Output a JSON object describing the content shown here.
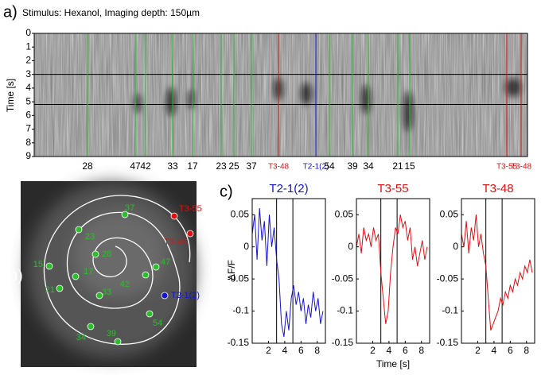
{
  "panel_a": {
    "label": "a)",
    "title": "Stimulus: Hexanol, Imaging depth: 150µm",
    "ylabel": "Time [s]",
    "ylim": [
      0,
      9
    ],
    "yticks": [
      0,
      1,
      2,
      3,
      4,
      5,
      6,
      7,
      8,
      9
    ],
    "stimulus": [
      3,
      5.2
    ],
    "cells": [
      {
        "label": "28",
        "color": "#2bbf2b"
      },
      {
        "label": "47",
        "color": "#2bbf2b"
      },
      {
        "label": "42",
        "color": "#2bbf2b"
      },
      {
        "label": "33",
        "color": "#2bbf2b"
      },
      {
        "label": "17",
        "color": "#2bbf2b"
      },
      {
        "label": "23",
        "color": "#2bbf2b"
      },
      {
        "label": "25",
        "color": "#2bbf2b"
      },
      {
        "label": "37",
        "color": "#2bbf2b"
      },
      {
        "label": "T3-48",
        "color": "#e01010"
      },
      {
        "label": "T2-1(2)",
        "color": "#1515d0"
      },
      {
        "label": "54",
        "color": "#2bbf2b"
      },
      {
        "label": "39",
        "color": "#2bbf2b"
      },
      {
        "label": "34",
        "color": "#2bbf2b"
      },
      {
        "label": "21",
        "color": "#2bbf2b"
      },
      {
        "label": "15",
        "color": "#2bbf2b"
      },
      {
        "label": "T3-55",
        "color": "#e01010"
      },
      {
        "label": "T3-48",
        "color": "#e01010"
      }
    ]
  },
  "panel_b": {
    "label": "b)",
    "cells": [
      {
        "label": "37",
        "color": "#2bbf2b"
      },
      {
        "label": "T3-55",
        "color": "#e01010"
      },
      {
        "label": "T3-48",
        "color": "#e01010"
      },
      {
        "label": "23",
        "color": "#2bbf2b"
      },
      {
        "label": "28",
        "color": "#2bbf2b"
      },
      {
        "label": "15",
        "color": "#2bbf2b"
      },
      {
        "label": "17",
        "color": "#2bbf2b"
      },
      {
        "label": "21",
        "color": "#2bbf2b"
      },
      {
        "label": "47",
        "color": "#2bbf2b"
      },
      {
        "label": "42",
        "color": "#2bbf2b"
      },
      {
        "label": "33",
        "color": "#2bbf2b"
      },
      {
        "label": "T2-1(2)",
        "color": "#1515d0"
      },
      {
        "label": "54",
        "color": "#2bbf2b"
      },
      {
        "label": "34",
        "color": "#2bbf2b"
      },
      {
        "label": "39",
        "color": "#2bbf2b"
      }
    ]
  },
  "panel_c": {
    "label": "c)",
    "xlabel": "Time [s]",
    "ylabel": "ΔF/F",
    "chart_data": [
      {
        "type": "line",
        "title": "T2-1(2)",
        "color": "#1515d0",
        "xlim": [
          0,
          9
        ],
        "xticks": [
          2,
          4,
          6,
          8
        ],
        "ylim": [
          -0.15,
          0.075
        ],
        "yticks": [
          0.05,
          0,
          -0.05,
          -0.1,
          -0.15
        ],
        "vlines": [
          3,
          5
        ],
        "x": [
          0,
          0.3,
          0.6,
          0.9,
          1.2,
          1.5,
          1.8,
          2.1,
          2.4,
          2.7,
          3.0,
          3.3,
          3.6,
          3.9,
          4.2,
          4.5,
          4.8,
          5.1,
          5.4,
          5.7,
          6.0,
          6.3,
          6.6,
          6.9,
          7.2,
          7.5,
          7.8,
          8.1,
          8.4,
          8.7
        ],
        "values": [
          0.02,
          0.05,
          -0.02,
          0.06,
          0.01,
          0.04,
          -0.03,
          0.05,
          0.0,
          0.03,
          -0.02,
          -0.05,
          -0.12,
          -0.14,
          -0.1,
          -0.13,
          -0.08,
          -0.06,
          -0.09,
          -0.07,
          -0.1,
          -0.08,
          -0.12,
          -0.09,
          -0.11,
          -0.07,
          -0.1,
          -0.08,
          -0.12,
          -0.1
        ]
      },
      {
        "type": "line",
        "title": "T3-55",
        "color": "#e01010",
        "xlim": [
          0,
          9
        ],
        "xticks": [
          2,
          4,
          6,
          8
        ],
        "ylim": [
          -0.15,
          0.075
        ],
        "yticks": [
          0.05,
          0,
          -0.05,
          -0.1,
          -0.15
        ],
        "vlines": [
          3,
          5
        ],
        "x": [
          0,
          0.3,
          0.6,
          0.9,
          1.2,
          1.5,
          1.8,
          2.1,
          2.4,
          2.7,
          3.0,
          3.3,
          3.6,
          3.9,
          4.2,
          4.5,
          4.8,
          5.1,
          5.4,
          5.7,
          6.0,
          6.3,
          6.6,
          6.9,
          7.2,
          7.5,
          7.8,
          8.1,
          8.4,
          8.7
        ],
        "values": [
          0.0,
          0.02,
          -0.01,
          0.03,
          0.01,
          0.02,
          0.0,
          0.03,
          0.01,
          0.02,
          -0.04,
          -0.08,
          -0.12,
          -0.1,
          -0.04,
          0.0,
          0.03,
          0.02,
          0.05,
          0.03,
          0.04,
          0.01,
          0.03,
          -0.02,
          0.0,
          -0.03,
          -0.01,
          0.01,
          -0.02,
          0.0
        ]
      },
      {
        "type": "line",
        "title": "T3-48",
        "color": "#e01010",
        "xlim": [
          0,
          9
        ],
        "xticks": [
          2,
          4,
          6,
          8
        ],
        "ylim": [
          -0.15,
          0.075
        ],
        "yticks": [
          0.05,
          0,
          -0.05,
          -0.1,
          -0.15
        ],
        "vlines": [
          3,
          5
        ],
        "x": [
          0,
          0.3,
          0.6,
          0.9,
          1.2,
          1.5,
          1.8,
          2.1,
          2.4,
          2.7,
          3.0,
          3.3,
          3.6,
          3.9,
          4.2,
          4.5,
          4.8,
          5.1,
          5.4,
          5.7,
          6.0,
          6.3,
          6.6,
          6.9,
          7.2,
          7.5,
          7.8,
          8.1,
          8.4,
          8.7
        ],
        "values": [
          0.02,
          0.0,
          0.04,
          -0.01,
          0.03,
          0.01,
          0.05,
          0.0,
          0.02,
          -0.01,
          -0.03,
          -0.08,
          -0.13,
          -0.12,
          -0.11,
          -0.1,
          -0.08,
          -0.09,
          -0.07,
          -0.08,
          -0.06,
          -0.07,
          -0.05,
          -0.06,
          -0.04,
          -0.05,
          -0.03,
          -0.04,
          -0.02,
          -0.04
        ]
      }
    ]
  }
}
